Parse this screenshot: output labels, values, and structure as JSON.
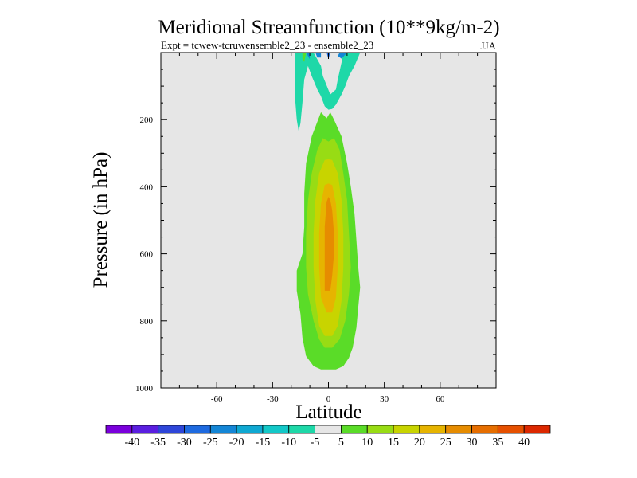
{
  "chart_data": {
    "type": "contour",
    "title": "Meridional Streamfunction (10**9kg/m-2)",
    "subtitle_left": "Expt = tcwew-tcruwensemble2_23 - ensemble2_23",
    "subtitle_right": "JJA",
    "xlabel": "Latitude",
    "ylabel": "Pressure (in hPa)",
    "xlim": [
      -90,
      90
    ],
    "ylim": [
      1000,
      0
    ],
    "x_ticks": [
      -60,
      -30,
      0,
      30,
      60
    ],
    "y_ticks": [
      200,
      400,
      600,
      800,
      1000
    ],
    "x_tick_labels": [
      "-60",
      "-30",
      "0",
      "30",
      "60"
    ],
    "y_tick_labels": [
      "200",
      "400",
      "600",
      "800",
      "1000"
    ],
    "plot_background": "#e6e6e6",
    "contour_levels": [
      -40,
      -35,
      -30,
      -25,
      -20,
      -15,
      -10,
      -5,
      5,
      10,
      15,
      20,
      25,
      30,
      35,
      40
    ],
    "colorbar_labels": [
      "-40",
      "-35",
      "-30",
      "-25",
      "-20",
      "-15",
      "-10",
      "-5",
      "5",
      "10",
      "15",
      "20",
      "25",
      "30",
      "35",
      "40"
    ],
    "colorbar_colors": [
      "#7a00dc",
      "#5a1ee0",
      "#2e46d9",
      "#1e6ae0",
      "#1486d6",
      "#0fa8d2",
      "#13c8c8",
      "#1ed8a8",
      "#e6e6e6",
      "#5adc28",
      "#98dc14",
      "#c8d400",
      "#e6b400",
      "#e68c00",
      "#e66e00",
      "#e65000",
      "#dc2800"
    ],
    "regions": [
      {
        "level": 5,
        "color": "#5adc28",
        "points": [
          [
            -4,
            945
          ],
          [
            4,
            945
          ],
          [
            8,
            935
          ],
          [
            11,
            910
          ],
          [
            13,
            880
          ],
          [
            15,
            820
          ],
          [
            16,
            760
          ],
          [
            17,
            700
          ],
          [
            16,
            640
          ],
          [
            15,
            560
          ],
          [
            14,
            480
          ],
          [
            12,
            400
          ],
          [
            10,
            330
          ],
          [
            7,
            250
          ],
          [
            3,
            200
          ],
          [
            1,
            178
          ],
          [
            -1,
            196
          ],
          [
            -4,
            178
          ],
          [
            -9,
            250
          ],
          [
            -12,
            330
          ],
          [
            -13,
            420
          ],
          [
            -13,
            520
          ],
          [
            -14,
            600
          ],
          [
            -17,
            650
          ],
          [
            -17,
            710
          ],
          [
            -15,
            780
          ],
          [
            -14,
            850
          ],
          [
            -12,
            905
          ],
          [
            -8,
            935
          ]
        ]
      },
      {
        "level": 10,
        "color": "#98dc14",
        "points": [
          [
            -2,
            880
          ],
          [
            2,
            880
          ],
          [
            6,
            855
          ],
          [
            9,
            800
          ],
          [
            11,
            720
          ],
          [
            12,
            640
          ],
          [
            11,
            540
          ],
          [
            10,
            440
          ],
          [
            8,
            360
          ],
          [
            6,
            290
          ],
          [
            3,
            255
          ],
          [
            0,
            265
          ],
          [
            -3,
            255
          ],
          [
            -6,
            290
          ],
          [
            -9,
            360
          ],
          [
            -11,
            440
          ],
          [
            -12,
            540
          ],
          [
            -12,
            640
          ],
          [
            -11,
            720
          ],
          [
            -8,
            800
          ],
          [
            -5,
            855
          ]
        ]
      },
      {
        "level": 15,
        "color": "#c8d400",
        "points": [
          [
            -2,
            845
          ],
          [
            2,
            845
          ],
          [
            5,
            815
          ],
          [
            7,
            740
          ],
          [
            8,
            640
          ],
          [
            8,
            540
          ],
          [
            7,
            440
          ],
          [
            5,
            360
          ],
          [
            2,
            320
          ],
          [
            0,
            318
          ],
          [
            -2,
            320
          ],
          [
            -5,
            360
          ],
          [
            -7,
            440
          ],
          [
            -8,
            540
          ],
          [
            -8,
            640
          ],
          [
            -7,
            740
          ],
          [
            -5,
            815
          ]
        ]
      },
      {
        "level": 20,
        "color": "#e6b400",
        "points": [
          [
            -1,
            775
          ],
          [
            2,
            775
          ],
          [
            4,
            730
          ],
          [
            5,
            640
          ],
          [
            5,
            540
          ],
          [
            4,
            450
          ],
          [
            2,
            395
          ],
          [
            0,
            390
          ],
          [
            -2,
            395
          ],
          [
            -4,
            450
          ],
          [
            -5,
            540
          ],
          [
            -5,
            640
          ],
          [
            -4,
            730
          ]
        ]
      },
      {
        "level": 25,
        "color": "#e68c00",
        "points": [
          [
            -2,
            710
          ],
          [
            1,
            710
          ],
          [
            2,
            665
          ],
          [
            3,
            600
          ],
          [
            3,
            540
          ],
          [
            2,
            470
          ],
          [
            1,
            440
          ],
          [
            0,
            430
          ],
          [
            -1,
            445
          ],
          [
            -2,
            520
          ],
          [
            -2,
            600
          ]
        ]
      },
      {
        "level": -5,
        "color": "#1ed8a8",
        "points": [
          [
            -18,
            0
          ],
          [
            -8,
            0
          ],
          [
            -4,
            40
          ],
          [
            -3,
            70
          ],
          [
            1,
            125
          ],
          [
            4,
            110
          ],
          [
            5,
            80
          ],
          [
            7,
            30
          ],
          [
            8,
            0
          ],
          [
            17,
            0
          ],
          [
            14,
            40
          ],
          [
            11,
            70
          ],
          [
            9,
            100
          ],
          [
            7,
            125
          ],
          [
            4,
            155
          ],
          [
            2,
            168
          ],
          [
            0,
            170
          ],
          [
            -2,
            160
          ],
          [
            -4,
            130
          ],
          [
            -6,
            110
          ],
          [
            -9,
            70
          ],
          [
            -11,
            40
          ],
          [
            -13,
            80
          ],
          [
            -14,
            150
          ],
          [
            -15,
            210
          ],
          [
            -16,
            235
          ],
          [
            -17,
            200
          ],
          [
            -18,
            130
          ],
          [
            -18,
            60
          ]
        ]
      },
      {
        "level": -10,
        "color": "#1486d6",
        "points": [
          [
            -12,
            0
          ],
          [
            -10,
            0
          ],
          [
            -10,
            20
          ],
          [
            -11,
            10
          ]
        ]
      },
      {
        "level": -10,
        "color": "#1486d6",
        "points": [
          [
            -7,
            0
          ],
          [
            -4,
            0
          ],
          [
            -4,
            15
          ],
          [
            -6,
            15
          ]
        ]
      },
      {
        "level": -15,
        "color": "#1e6ae0",
        "points": [
          [
            -1,
            0
          ],
          [
            1,
            0
          ],
          [
            0,
            20
          ]
        ]
      },
      {
        "level": -10,
        "color": "#1486d6",
        "points": [
          [
            6,
            0
          ],
          [
            10,
            0
          ],
          [
            7,
            18
          ],
          [
            5,
            10
          ]
        ]
      },
      {
        "level": 5,
        "color": "#5adc28",
        "points": [
          [
            -14,
            0
          ],
          [
            -12,
            0
          ],
          [
            -13,
            28
          ],
          [
            -14,
            18
          ]
        ]
      }
    ]
  }
}
